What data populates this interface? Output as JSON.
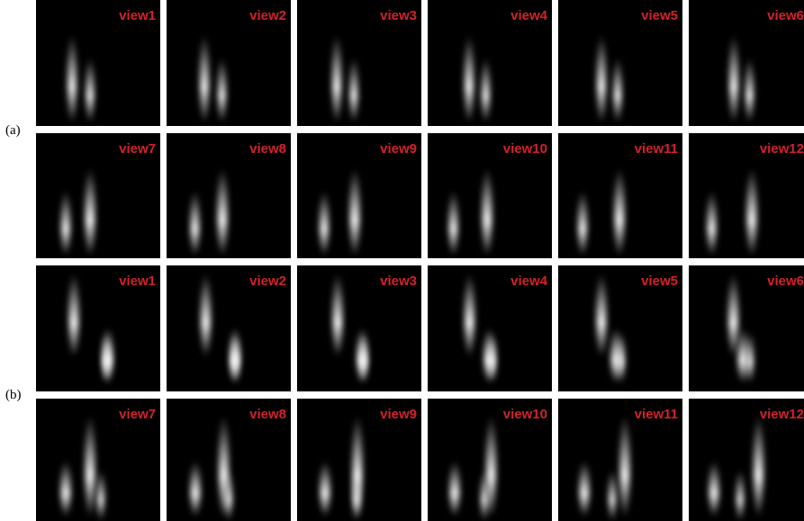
{
  "panels": [
    {
      "label": "(a)",
      "views": [
        "view1",
        "view2",
        "view3",
        "view4",
        "view5",
        "view6",
        "view7",
        "view8",
        "view9",
        "view10",
        "view11",
        "view12"
      ]
    },
    {
      "label": "(b)",
      "views": [
        "view1",
        "view2",
        "view3",
        "view4",
        "view5",
        "view6",
        "view7",
        "view8",
        "view9",
        "view10",
        "view11",
        "view12"
      ]
    }
  ]
}
